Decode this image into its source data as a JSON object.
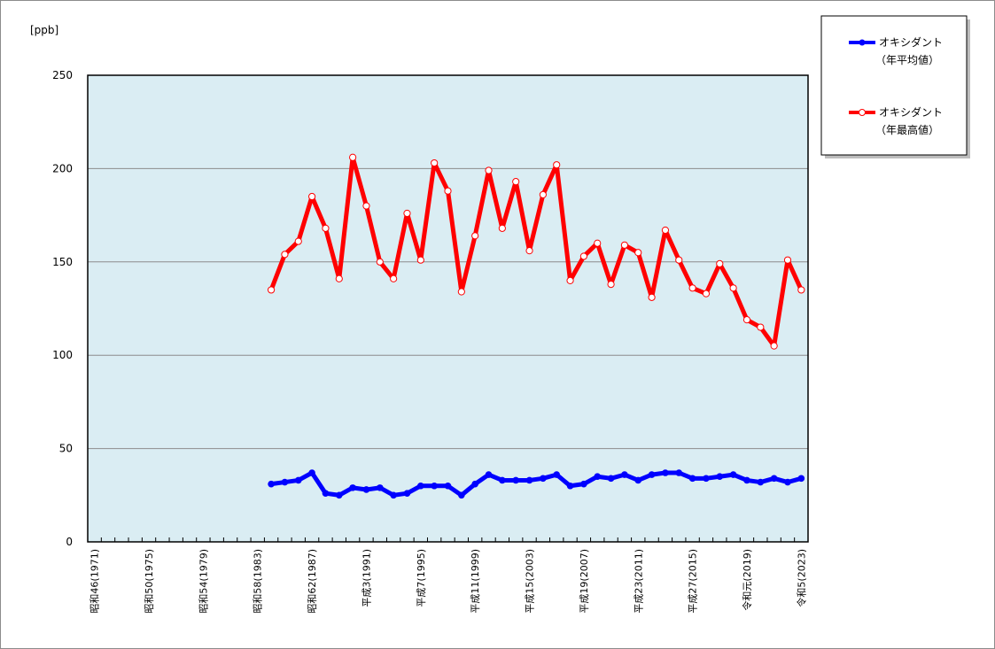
{
  "chart_data": {
    "type": "line",
    "unit_label": "[ppb]",
    "ylim": [
      0,
      250
    ],
    "yticks": [
      0,
      50,
      100,
      150,
      200,
      250
    ],
    "grid": true,
    "legend_position": "top-right",
    "plot_background": "#daedf3",
    "x_labels": [
      "昭和46(1971)",
      "",
      "",
      "",
      "昭和50(1975)",
      "",
      "",
      "",
      "昭和54(1979)",
      "",
      "",
      "",
      "昭和58(1983)",
      "",
      "",
      "",
      "昭和62(1987)",
      "",
      "",
      "",
      "平成3(1991)",
      "",
      "",
      "",
      "平成7(1995)",
      "",
      "",
      "",
      "平成11(1999)",
      "",
      "",
      "",
      "平成15(2003)",
      "",
      "",
      "",
      "平成19(2007)",
      "",
      "",
      "",
      "平成23(2011)",
      "",
      "",
      "",
      "平成27(2015)",
      "",
      "",
      "",
      "令和元(2019)",
      "",
      "",
      "",
      "令和5(2023)"
    ],
    "series": [
      {
        "name_line1": "オキシダント",
        "name_line2": "（年平均値）",
        "color": "#0000ff",
        "marker": "filled",
        "values": [
          null,
          null,
          null,
          null,
          null,
          null,
          null,
          null,
          null,
          null,
          null,
          null,
          null,
          31,
          32,
          33,
          37,
          26,
          25,
          29,
          28,
          29,
          25,
          26,
          30,
          30,
          30,
          25,
          31,
          36,
          33,
          33,
          33,
          34,
          36,
          30,
          31,
          35,
          34,
          36,
          33,
          36,
          37,
          37,
          34,
          34,
          35,
          36,
          33,
          32,
          34,
          32,
          34
        ]
      },
      {
        "name_line1": "オキシダント",
        "name_line2": "（年最高値）",
        "color": "#ff0000",
        "marker": "hollow",
        "values": [
          null,
          null,
          null,
          null,
          null,
          null,
          null,
          null,
          null,
          null,
          null,
          null,
          null,
          135,
          154,
          161,
          185,
          168,
          141,
          206,
          180,
          150,
          141,
          176,
          151,
          203,
          188,
          134,
          164,
          199,
          168,
          193,
          156,
          186,
          202,
          140,
          153,
          160,
          138,
          159,
          155,
          131,
          167,
          151,
          136,
          133,
          149,
          136,
          119,
          115,
          105,
          151,
          135
        ]
      }
    ]
  }
}
